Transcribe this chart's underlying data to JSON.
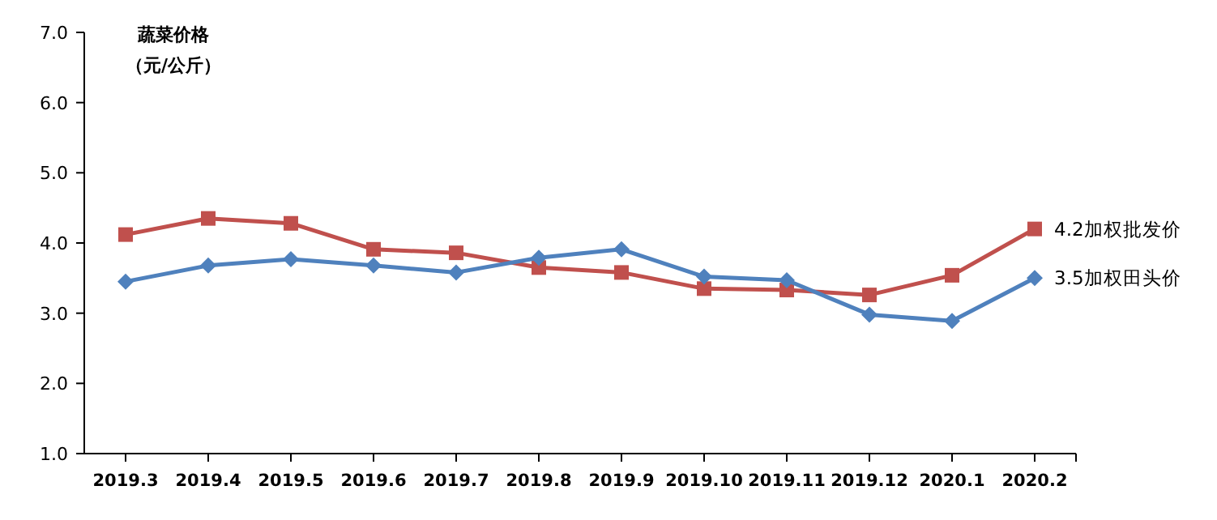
{
  "chart_data": {
    "type": "line",
    "title": "蔬菜价格",
    "subtitle": "（元/公斤）",
    "categories": [
      "2019.3",
      "2019.4",
      "2019.5",
      "2019.6",
      "2019.7",
      "2019.8",
      "2019.9",
      "2019.10",
      "2019.11",
      "2019.12",
      "2020.1",
      "2020.2"
    ],
    "series": [
      {
        "color": "#c0504d",
        "marker": "square",
        "values": [
          4.12,
          4.35,
          4.28,
          3.91,
          3.86,
          3.65,
          3.58,
          3.35,
          3.33,
          3.26,
          3.54,
          4.2
        ]
      },
      {
        "color": "#4f81bd",
        "marker": "diamond",
        "values": [
          3.45,
          3.68,
          3.77,
          3.68,
          3.58,
          3.79,
          3.91,
          3.52,
          3.47,
          2.98,
          2.89,
          3.5
        ]
      }
    ],
    "annotations": [
      {
        "text": "4.2加权批发价",
        "x": "2020.2",
        "y": 4.2
      },
      {
        "text": "3.5加权田头价",
        "x": "2020.2",
        "y": 3.5
      }
    ],
    "ylim": [
      1,
      7
    ],
    "yticks": [
      {
        "value": 1,
        "label": "1.0"
      },
      {
        "value": 2,
        "label": "2.0"
      },
      {
        "value": 3,
        "label": "3.0"
      },
      {
        "value": 4,
        "label": "4.0"
      },
      {
        "value": 5,
        "label": "5.0"
      },
      {
        "value": 6,
        "label": "6.0"
      },
      {
        "value": 7,
        "label": "7.0"
      }
    ],
    "grid": false,
    "line_style": "solid"
  }
}
